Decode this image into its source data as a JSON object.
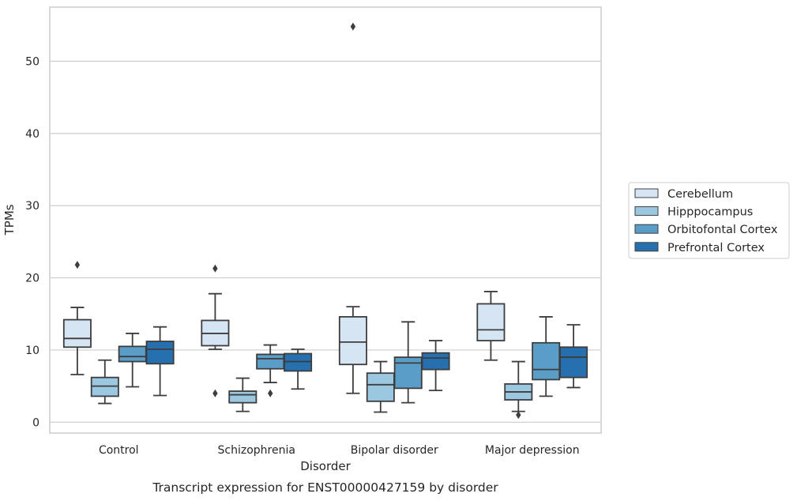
{
  "chart_data": {
    "type": "box",
    "xlabel": "Disorder",
    "ylabel": "TPMs",
    "caption": "Transcript expression for ENST00000427159 by disorder",
    "categories": [
      "Control",
      "Schizophrenia",
      "Bipolar disorder",
      "Major depression"
    ],
    "yticks": [
      0,
      10,
      20,
      30,
      40,
      50
    ],
    "ylim": [
      -1.5,
      57.5
    ],
    "grid": "horizontal",
    "legend_position": "right",
    "series": [
      {
        "name": "Cerebellum",
        "color": "#d6e5f4",
        "boxes": [
          {
            "whislo": 6.6,
            "q1": 10.4,
            "med": 11.6,
            "q3": 14.2,
            "whishi": 15.9,
            "fliers": [
              21.8
            ]
          },
          {
            "whislo": 10.1,
            "q1": 10.6,
            "med": 12.3,
            "q3": 14.1,
            "whishi": 17.8,
            "fliers": [
              21.3,
              4.0
            ]
          },
          {
            "whislo": 4.0,
            "q1": 8.0,
            "med": 11.1,
            "q3": 14.6,
            "whishi": 16.0,
            "fliers": [
              54.8
            ]
          },
          {
            "whislo": 8.6,
            "q1": 11.3,
            "med": 12.8,
            "q3": 16.4,
            "whishi": 18.1,
            "fliers": []
          }
        ]
      },
      {
        "name": "Hipppocampus",
        "color": "#9cc7e0",
        "boxes": [
          {
            "whislo": 2.6,
            "q1": 3.6,
            "med": 5.0,
            "q3": 6.2,
            "whishi": 8.6,
            "fliers": []
          },
          {
            "whislo": 1.5,
            "q1": 2.7,
            "med": 3.8,
            "q3": 4.3,
            "whishi": 6.1,
            "fliers": []
          },
          {
            "whislo": 1.4,
            "q1": 2.9,
            "med": 5.2,
            "q3": 6.8,
            "whishi": 8.4,
            "fliers": []
          },
          {
            "whislo": 1.5,
            "q1": 3.1,
            "med": 4.2,
            "q3": 5.3,
            "whishi": 8.4,
            "fliers": [
              1.0
            ]
          }
        ]
      },
      {
        "name": "Orbitofontal Cortex",
        "color": "#5a9ec8",
        "boxes": [
          {
            "whislo": 4.9,
            "q1": 8.4,
            "med": 9.1,
            "q3": 10.5,
            "whishi": 12.3,
            "fliers": []
          },
          {
            "whislo": 5.5,
            "q1": 7.4,
            "med": 8.8,
            "q3": 9.4,
            "whishi": 10.7,
            "fliers": [
              4.0
            ]
          },
          {
            "whislo": 2.7,
            "q1": 4.7,
            "med": 8.2,
            "q3": 9.0,
            "whishi": 13.9,
            "fliers": []
          },
          {
            "whislo": 3.6,
            "q1": 5.9,
            "med": 7.3,
            "q3": 11.0,
            "whishi": 14.6,
            "fliers": []
          }
        ]
      },
      {
        "name": "Prefrontal Cortex",
        "color": "#2670b0",
        "boxes": [
          {
            "whislo": 3.7,
            "q1": 8.1,
            "med": 10.1,
            "q3": 11.2,
            "whishi": 13.2,
            "fliers": []
          },
          {
            "whislo": 4.6,
            "q1": 7.1,
            "med": 8.4,
            "q3": 9.5,
            "whishi": 10.1,
            "fliers": []
          },
          {
            "whislo": 4.4,
            "q1": 7.3,
            "med": 8.9,
            "q3": 9.6,
            "whishi": 11.3,
            "fliers": []
          },
          {
            "whislo": 4.8,
            "q1": 6.2,
            "med": 9.0,
            "q3": 10.4,
            "whishi": 13.5,
            "fliers": []
          }
        ]
      }
    ]
  }
}
